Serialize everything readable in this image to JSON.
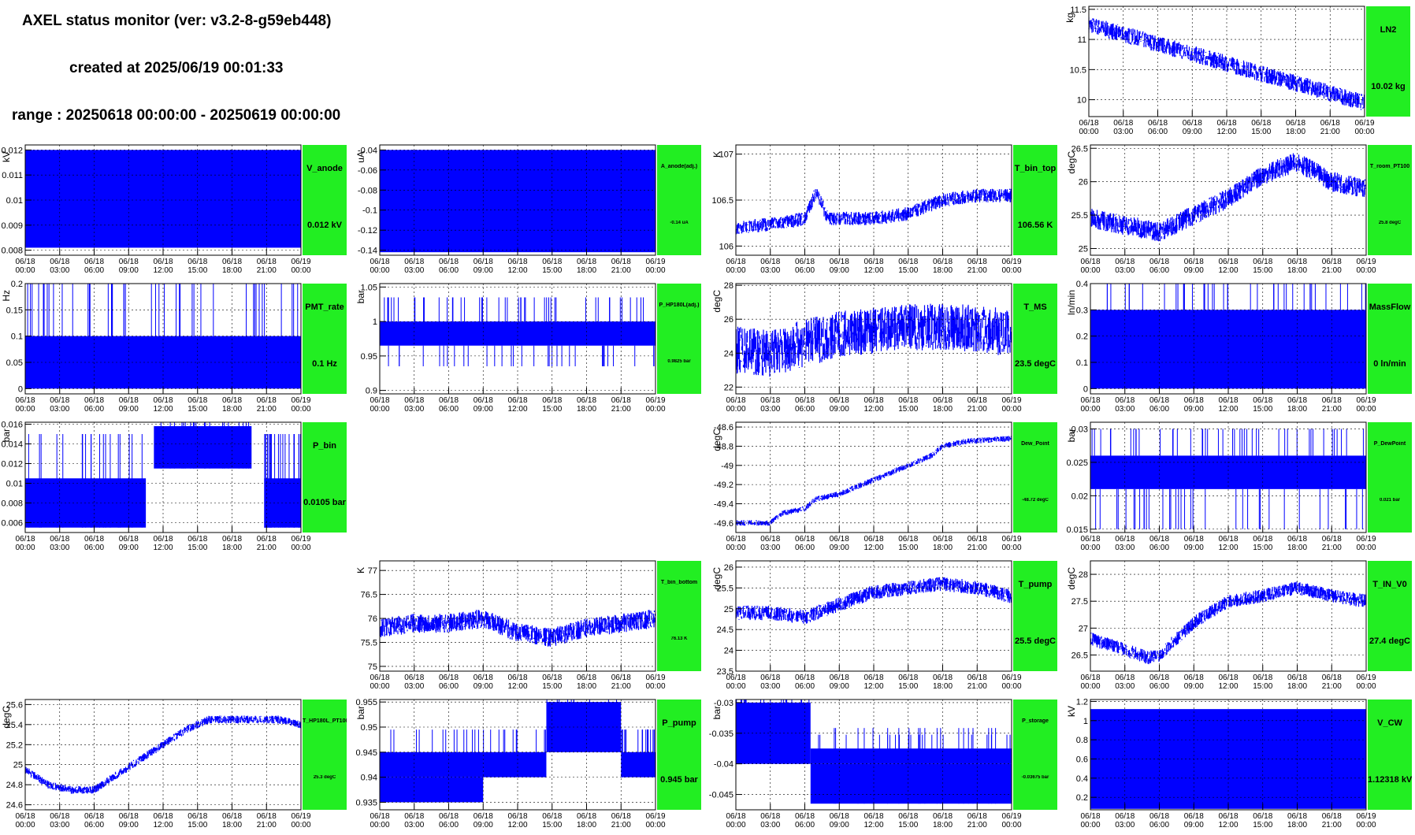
{
  "header": {
    "title": "AXEL status monitor (ver: v3.2-8-g59eb448)",
    "created": "created at 2025/06/19 00:01:33",
    "range": "range : 20250618 00:00:00 - 20250619 00:00:00"
  },
  "colors": {
    "trace": "#0000ff",
    "badge": "#22ee22",
    "grid": "#000000"
  },
  "x_ticks": [
    [
      "06/18",
      "00:00"
    ],
    [
      "06/18",
      "03:00"
    ],
    [
      "06/18",
      "06:00"
    ],
    [
      "06/18",
      "09:00"
    ],
    [
      "06/18",
      "12:00"
    ],
    [
      "06/18",
      "15:00"
    ],
    [
      "06/18",
      "18:00"
    ],
    [
      "06/18",
      "21:00"
    ],
    [
      "06/19",
      "00:00"
    ]
  ],
  "chart_data": [
    {
      "id": "LN2",
      "type": "line",
      "ylabel": "kg",
      "ylim": [
        9.72,
        11.55
      ],
      "yticks": [
        "11.5",
        "11",
        "10.5",
        "10"
      ],
      "ytick_values": [
        11.5,
        11,
        10.5,
        10
      ],
      "badge_name": "LN2",
      "badge_value": "10.02 kg",
      "small": false,
      "trend": {
        "hours": [
          0,
          24
        ],
        "values": [
          11.25,
          9.95
        ]
      },
      "noise": 0.28
    },
    {
      "id": "V_anode",
      "type": "area",
      "ylabel": "kV",
      "ylim": [
        0.0078,
        0.0122
      ],
      "yticks": [
        "0.012",
        "0.011",
        "0.01",
        "0.009",
        "0.008"
      ],
      "ytick_values": [
        0.012,
        0.011,
        0.01,
        0.009,
        0.008
      ],
      "badge_name": "V_anode",
      "badge_value": "0.012 kV",
      "small": false,
      "fill": [
        0.0081,
        0.012
      ]
    },
    {
      "id": "A_anode",
      "type": "area",
      "ylabel": "uA",
      "ylim": [
        -0.145,
        -0.035
      ],
      "yticks": [
        "-0.04",
        "-0.06",
        "-0.08",
        "-0.1",
        "-0.12",
        "-0.14"
      ],
      "ytick_values": [
        -0.04,
        -0.06,
        -0.08,
        -0.1,
        -0.12,
        -0.14
      ],
      "badge_name": "A_anode(adj.)",
      "badge_value": "-0.14 uA",
      "small": true,
      "fill": [
        -0.142,
        -0.04
      ]
    },
    {
      "id": "T_bin_top",
      "type": "line",
      "ylabel": "K",
      "ylim": [
        105.9,
        107.1
      ],
      "yticks": [
        "107",
        "106.5",
        "106"
      ],
      "ytick_values": [
        107,
        106.5,
        106
      ],
      "badge_name": "T_bin_top",
      "badge_value": "106.56 K",
      "small": false,
      "trend": {
        "hours": [
          0,
          4,
          6,
          7,
          8,
          9,
          12,
          15,
          18,
          21,
          24
        ],
        "values": [
          106.2,
          106.25,
          106.3,
          106.6,
          106.3,
          106.3,
          106.3,
          106.35,
          106.5,
          106.55,
          106.55
        ]
      },
      "noise": 0.15
    },
    {
      "id": "T_room_PT100",
      "type": "line",
      "ylabel": "degC",
      "ylim": [
        24.9,
        26.55
      ],
      "yticks": [
        "26.5",
        "26",
        "25.5",
        "25"
      ],
      "ytick_values": [
        26.5,
        26,
        25.5,
        25
      ],
      "badge_name": "T_room_PT100",
      "badge_value": "25.8 degC",
      "small": true,
      "trend": {
        "hours": [
          0,
          3,
          6,
          9,
          12,
          15,
          18,
          21,
          24
        ],
        "values": [
          25.45,
          25.35,
          25.25,
          25.5,
          25.75,
          26.1,
          26.3,
          26.0,
          25.9
        ]
      },
      "noise": 0.3
    },
    {
      "id": "PMT_rate",
      "type": "band",
      "ylabel": "Hz",
      "ylim": [
        -0.01,
        0.2
      ],
      "yticks": [
        "0.2",
        "0.15",
        "0.1",
        "0.05",
        "0"
      ],
      "ytick_values": [
        0.2,
        0.15,
        0.1,
        0.05,
        0
      ],
      "badge_name": "PMT_rate",
      "badge_value": "0.1 Hz",
      "small": false,
      "band": [
        0.0,
        0.1
      ],
      "spikes_hi": 0.2,
      "spikes_lo": 0
    },
    {
      "id": "P_HP180L",
      "type": "band",
      "ylabel": "bar",
      "ylim": [
        0.895,
        1.055
      ],
      "yticks": [
        "1.05",
        "1",
        "0.95",
        "0.9"
      ],
      "ytick_values": [
        1.05,
        1,
        0.95,
        0.9
      ],
      "badge_name": "P_HP180L(adj.)",
      "badge_value": "0.9825 bar",
      "small": true,
      "band": [
        0.965,
        1.0
      ],
      "spikes_hi": 1.035,
      "spikes_lo": 0.935
    },
    {
      "id": "T_MS",
      "type": "line",
      "ylabel": "degC",
      "ylim": [
        21.6,
        28.1
      ],
      "yticks": [
        "28",
        "26",
        "24",
        "22"
      ],
      "ytick_values": [
        28,
        26,
        24,
        22
      ],
      "badge_name": "T_MS",
      "badge_value": "23.5 degC",
      "small": false,
      "trend": {
        "hours": [
          0,
          3,
          6,
          9,
          12,
          15,
          18,
          21,
          24
        ],
        "values": [
          24.2,
          24.0,
          24.6,
          25.1,
          25.3,
          25.5,
          25.6,
          25.4,
          25.2
        ]
      },
      "noise": 2.8
    },
    {
      "id": "MassFlow",
      "type": "band",
      "ylabel": "ln/min",
      "ylim": [
        -0.02,
        0.4
      ],
      "yticks": [
        "0.4",
        "0.3",
        "0.2",
        "0.1",
        "0"
      ],
      "ytick_values": [
        0.4,
        0.3,
        0.2,
        0.1,
        0
      ],
      "badge_name": "MassFlow",
      "badge_value": "0 ln/min",
      "small": false,
      "band": [
        0.0,
        0.3
      ],
      "spikes_hi": 0.4,
      "spikes_lo": 0
    },
    {
      "id": "P_bin",
      "type": "steps",
      "ylabel": "bar",
      "ylim": [
        0.005,
        0.0162
      ],
      "yticks": [
        "0.016",
        "0.014",
        "0.012",
        "0.01",
        "0.008",
        "0.006"
      ],
      "ytick_values": [
        0.016,
        0.014,
        0.012,
        0.01,
        0.008,
        0.006
      ],
      "badge_name": "P_bin",
      "badge_value": "0.0105 bar",
      "small": false,
      "blocks": [
        [
          0,
          10.5,
          0.0055,
          0.0105
        ],
        [
          11.2,
          19.7,
          0.0115,
          0.0158
        ],
        [
          20.8,
          24,
          0.0055,
          0.0105
        ]
      ]
    },
    {
      "id": "Dew_Point",
      "type": "line",
      "ylabel": "degC",
      "ylim": [
        -49.7,
        -48.55
      ],
      "yticks": [
        "-48.6",
        "-48.8",
        "-49",
        "-49.2",
        "-49.4",
        "-49.6"
      ],
      "ytick_values": [
        -48.6,
        -48.8,
        -49,
        -49.2,
        -49.4,
        -49.6
      ],
      "badge_name": "Dew_Point",
      "badge_value": "-48.72 degC",
      "small": true,
      "trend": {
        "hours": [
          0,
          3,
          4,
          6,
          7,
          9,
          11,
          13,
          15,
          17,
          18,
          20,
          24
        ],
        "values": [
          -49.6,
          -49.6,
          -49.5,
          -49.45,
          -49.35,
          -49.3,
          -49.2,
          -49.1,
          -49.0,
          -48.9,
          -48.8,
          -48.75,
          -48.72
        ]
      },
      "noise": 0.06
    },
    {
      "id": "P_DewPoint",
      "type": "band",
      "ylabel": "bar",
      "ylim": [
        0.0145,
        0.031
      ],
      "yticks": [
        "0.03",
        "0.025",
        "0.02",
        "0.015"
      ],
      "ytick_values": [
        0.03,
        0.025,
        0.02,
        0.015
      ],
      "badge_name": "P_DewPoint",
      "badge_value": "0.021 bar",
      "small": true,
      "band": [
        0.021,
        0.026
      ],
      "spikes_hi": 0.03,
      "spikes_lo": 0.015
    },
    {
      "id": "T_bin_bottom",
      "type": "line",
      "ylabel": "K",
      "ylim": [
        74.9,
        77.2
      ],
      "yticks": [
        "77",
        "76.5",
        "76",
        "75.5",
        "75"
      ],
      "ytick_values": [
        77,
        76.5,
        76,
        75.5,
        75
      ],
      "badge_name": "T_bin_bottom",
      "badge_value": "76.13 K",
      "small": true,
      "trend": {
        "hours": [
          0,
          3,
          6,
          9,
          12,
          15,
          18,
          21,
          24
        ],
        "values": [
          75.8,
          75.9,
          75.9,
          76.0,
          75.7,
          75.6,
          75.8,
          75.9,
          76.0
        ]
      },
      "noise": 0.4
    },
    {
      "id": "T_pump",
      "type": "line",
      "ylabel": "degC",
      "ylim": [
        23.5,
        26.15
      ],
      "yticks": [
        "26",
        "25.5",
        "25",
        "24.5",
        "24",
        "23.5"
      ],
      "ytick_values": [
        26,
        25.5,
        25,
        24.5,
        24,
        23.5
      ],
      "badge_name": "T_pump",
      "badge_value": "25.5 degC",
      "small": false,
      "trend": {
        "hours": [
          0,
          3,
          6,
          9,
          12,
          15,
          18,
          21,
          24
        ],
        "values": [
          24.9,
          24.9,
          24.8,
          25.1,
          25.4,
          25.5,
          25.6,
          25.5,
          25.3
        ]
      },
      "noise": 0.35
    },
    {
      "id": "T_IN_V0",
      "type": "line",
      "ylabel": "degC",
      "ylim": [
        26.2,
        28.25
      ],
      "yticks": [
        "28",
        "27.5",
        "27",
        "26.5"
      ],
      "ytick_values": [
        28,
        27.5,
        27,
        26.5
      ],
      "badge_name": "T_IN_V0",
      "badge_value": "27.4 degC",
      "small": false,
      "trend": {
        "hours": [
          0,
          3,
          5,
          6,
          9,
          12,
          15,
          18,
          21,
          24
        ],
        "values": [
          26.8,
          26.6,
          26.45,
          26.5,
          27.1,
          27.5,
          27.6,
          27.75,
          27.6,
          27.5
        ]
      },
      "noise": 0.25
    },
    {
      "id": "T_HP180L_PT100",
      "type": "line",
      "ylabel": "degC",
      "ylim": [
        24.55,
        25.65
      ],
      "yticks": [
        "25.6",
        "25.4",
        "25.2",
        "25",
        "24.8",
        "24.6"
      ],
      "ytick_values": [
        25.6,
        25.4,
        25.2,
        25,
        24.8,
        24.6
      ],
      "badge_name": "T_HP180L_PT100",
      "badge_value": "25.3 degC",
      "small": true,
      "trend": {
        "hours": [
          0,
          2,
          4,
          6,
          8,
          10,
          12,
          14,
          16,
          18,
          20,
          22,
          24
        ],
        "values": [
          24.95,
          24.8,
          24.75,
          24.75,
          24.9,
          25.05,
          25.2,
          25.35,
          25.45,
          25.45,
          25.45,
          25.45,
          25.4
        ]
      },
      "noise": 0.08
    },
    {
      "id": "P_pump",
      "type": "steps",
      "ylabel": "bar",
      "ylim": [
        0.9335,
        0.9555
      ],
      "yticks": [
        "0.955",
        "0.95",
        "0.945",
        "0.94",
        "0.935"
      ],
      "ytick_values": [
        0.955,
        0.95,
        0.945,
        0.94,
        0.935
      ],
      "badge_name": "P_pump",
      "badge_value": "0.945 bar",
      "small": false,
      "blocks": [
        [
          0,
          9,
          0.94,
          0.945
        ],
        [
          0,
          9,
          0.935,
          0.94
        ],
        [
          9,
          14.5,
          0.94,
          0.945
        ],
        [
          14.5,
          21,
          0.945,
          0.955
        ],
        [
          21,
          24,
          0.94,
          0.945
        ]
      ]
    },
    {
      "id": "P_storage",
      "type": "steps",
      "ylabel": "bar",
      "ylim": [
        -0.0475,
        -0.0295
      ],
      "yticks": [
        "-0.03",
        "-0.035",
        "-0.04",
        "-0.045"
      ],
      "ytick_values": [
        -0.03,
        -0.035,
        -0.04,
        -0.045
      ],
      "badge_name": "P_storage",
      "badge_value": "-0.03675 bar",
      "small": true,
      "blocks": [
        [
          0,
          6.5,
          -0.04,
          -0.03
        ],
        [
          6.5,
          24,
          -0.04,
          -0.0375
        ],
        [
          6.5,
          24,
          -0.0465,
          -0.04
        ]
      ]
    },
    {
      "id": "V_CW",
      "type": "area",
      "ylabel": "kV",
      "ylim": [
        0.07,
        1.22
      ],
      "yticks": [
        "1.2",
        "1",
        "0.8",
        "0.6",
        "0.4",
        "0.2"
      ],
      "ytick_values": [
        1.2,
        1,
        0.8,
        0.6,
        0.4,
        0.2
      ],
      "badge_name": "V_CW",
      "badge_value": "1.12318 kV",
      "small": false,
      "fill": [
        0.08,
        1.12
      ]
    }
  ]
}
